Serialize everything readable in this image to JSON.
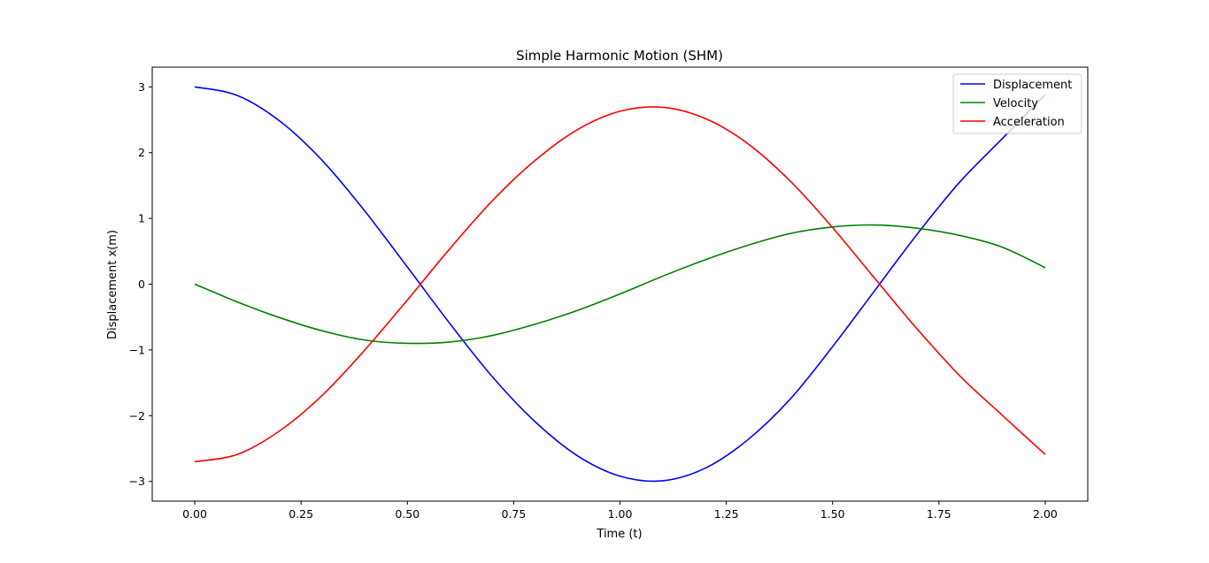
{
  "chart_data": {
    "type": "line",
    "title": "Simple Harmonic Motion (SHM)",
    "xlabel": "Time (t)",
    "ylabel": "Displacement x(m)",
    "xlim": [
      -0.1,
      2.1
    ],
    "ylim": [
      -3.3,
      3.3
    ],
    "xticks": [
      0.0,
      0.25,
      0.5,
      0.75,
      1.0,
      1.25,
      1.5,
      1.75,
      2.0
    ],
    "xtick_labels": [
      "0.00",
      "0.25",
      "0.50",
      "0.75",
      "1.00",
      "1.25",
      "1.50",
      "1.75",
      "2.00"
    ],
    "yticks": [
      -3,
      -2,
      -1,
      0,
      1,
      2,
      3
    ],
    "ytick_labels": [
      "−3",
      "−2",
      "−1",
      "0",
      "1",
      "2",
      "3"
    ],
    "grid": false,
    "legend_position": "top-right",
    "x": [
      0.0,
      0.1,
      0.2,
      0.3,
      0.4,
      0.5,
      0.6,
      0.7,
      0.8,
      0.9,
      1.0,
      1.1,
      1.2,
      1.3,
      1.4,
      1.5,
      1.6,
      1.7,
      1.8,
      1.9,
      2.0
    ],
    "series": [
      {
        "name": "Displacement",
        "color": "#0000ff",
        "values": [
          3.0,
          2.87,
          2.48,
          1.88,
          1.11,
          0.26,
          -0.6,
          -1.41,
          -2.09,
          -2.61,
          -2.92,
          -2.99,
          -2.8,
          -2.37,
          -1.75,
          -0.95,
          -0.09,
          0.77,
          1.56,
          2.22,
          2.88
        ]
      },
      {
        "name": "Velocity",
        "color": "#008000",
        "values": [
          0.0,
          -0.27,
          -0.51,
          -0.71,
          -0.85,
          -0.9,
          -0.88,
          -0.78,
          -0.61,
          -0.4,
          -0.15,
          0.12,
          0.37,
          0.59,
          0.77,
          0.87,
          0.9,
          0.85,
          0.74,
          0.56,
          0.25
        ]
      },
      {
        "name": "Acceleration",
        "color": "#ff0000",
        "values": [
          -2.7,
          -2.59,
          -2.23,
          -1.69,
          -1.0,
          -0.24,
          0.54,
          1.27,
          1.88,
          2.35,
          2.63,
          2.69,
          2.52,
          2.14,
          1.57,
          0.86,
          0.08,
          -0.69,
          -1.4,
          -2.0,
          -2.59
        ]
      }
    ]
  }
}
